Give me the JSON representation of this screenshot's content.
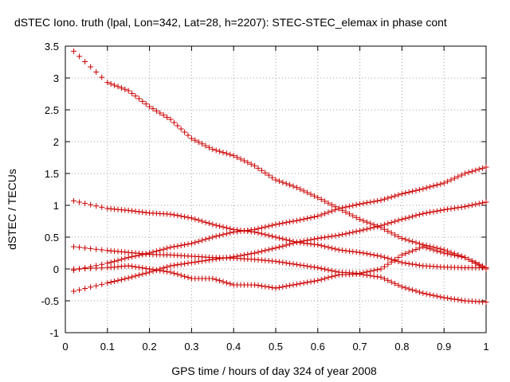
{
  "chart_data": {
    "type": "scatter",
    "title": "dSTEC Iono. truth (lpal, Lon=342, Lat=28, h=2207): STEC-STEC_elemax in phase cont",
    "xlabel": "GPS time / hours of day 324 of year 2008",
    "ylabel": "dSTEC  / TECUs",
    "xlim": [
      0,
      1
    ],
    "ylim": [
      -1,
      3.5
    ],
    "xticks": [
      0,
      0.1,
      0.2,
      0.3,
      0.4,
      0.5,
      0.6,
      0.7,
      0.8,
      0.9,
      1
    ],
    "yticks": [
      -1,
      -0.5,
      0,
      0.5,
      1,
      1.5,
      2,
      2.5,
      3,
      3.5
    ],
    "xtick_labels": [
      "0",
      "0.1",
      "0.2",
      "0.3",
      "0.4",
      "0.5",
      "0.6",
      "0.7",
      "0.8",
      "0.9",
      "1"
    ],
    "ytick_labels": [
      "-1",
      "-0.5",
      "0",
      "0.5",
      "1",
      "1.5",
      "2",
      "2.5",
      "3",
      "3.5"
    ],
    "grid": true,
    "marker": "+",
    "color": "#cc0000",
    "series": [
      {
        "x": [
          0.02,
          0.1,
          0.15,
          0.2,
          0.25,
          0.3,
          0.35,
          0.4,
          0.45,
          0.5,
          0.55,
          0.6,
          0.65,
          0.7,
          0.75,
          0.8,
          0.85,
          0.9,
          0.95,
          1.0
        ],
        "y": [
          3.42,
          2.93,
          2.8,
          2.55,
          2.35,
          2.05,
          1.88,
          1.78,
          1.62,
          1.4,
          1.28,
          1.12,
          0.95,
          0.78,
          0.65,
          0.48,
          0.38,
          0.3,
          0.18,
          0.02
        ]
      },
      {
        "x": [
          0.02,
          0.1,
          0.15,
          0.2,
          0.25,
          0.3,
          0.35,
          0.4,
          0.45,
          0.5,
          0.55,
          0.6,
          0.65,
          0.7,
          0.75,
          0.8,
          0.85,
          0.9,
          0.95,
          1.0
        ],
        "y": [
          1.07,
          0.95,
          0.92,
          0.88,
          0.86,
          0.8,
          0.7,
          0.62,
          0.58,
          0.5,
          0.42,
          0.38,
          0.3,
          0.26,
          0.2,
          0.1,
          0.05,
          0.03,
          0.02,
          0.02
        ]
      },
      {
        "x": [
          0.02,
          0.1,
          0.15,
          0.2,
          0.25,
          0.3,
          0.35,
          0.4,
          0.45,
          0.5,
          0.55,
          0.6,
          0.65,
          0.7,
          0.75,
          0.8,
          0.85,
          0.9,
          0.95,
          1.0
        ],
        "y": [
          0.35,
          0.29,
          0.26,
          0.23,
          0.22,
          0.2,
          0.18,
          0.17,
          0.15,
          0.12,
          0.07,
          0.02,
          -0.05,
          -0.07,
          0.0,
          0.22,
          0.35,
          0.25,
          0.18,
          0.0
        ]
      },
      {
        "x": [
          0.02,
          0.1,
          0.15,
          0.2,
          0.25,
          0.3,
          0.35,
          0.4,
          0.45,
          0.5,
          0.55,
          0.6,
          0.65,
          0.7,
          0.75,
          0.8,
          0.85,
          0.9,
          0.95,
          1.0
        ],
        "y": [
          -0.02,
          0.09,
          0.18,
          0.25,
          0.34,
          0.4,
          0.5,
          0.58,
          0.62,
          0.7,
          0.76,
          0.83,
          0.95,
          1.02,
          1.08,
          1.18,
          1.26,
          1.35,
          1.5,
          1.6
        ]
      },
      {
        "x": [
          0.02,
          0.1,
          0.15,
          0.2,
          0.25,
          0.3,
          0.35,
          0.4,
          0.45,
          0.5,
          0.55,
          0.6,
          0.65,
          0.7,
          0.75,
          0.8,
          0.85,
          0.9,
          0.95,
          1.0
        ],
        "y": [
          -0.35,
          -0.22,
          -0.14,
          -0.05,
          0.05,
          0.1,
          0.15,
          0.19,
          0.25,
          0.33,
          0.42,
          0.48,
          0.53,
          0.6,
          0.68,
          0.78,
          0.87,
          0.93,
          0.98,
          1.05
        ]
      },
      {
        "x": [
          0.02,
          0.1,
          0.15,
          0.2,
          0.25,
          0.3,
          0.35,
          0.4,
          0.45,
          0.5,
          0.55,
          0.6,
          0.65,
          0.7,
          0.75,
          0.8,
          0.85,
          0.9,
          0.95,
          1.0
        ],
        "y": [
          0.0,
          0.02,
          0.05,
          0.0,
          -0.05,
          -0.15,
          -0.15,
          -0.25,
          -0.25,
          -0.3,
          -0.24,
          -0.18,
          -0.09,
          -0.08,
          -0.13,
          -0.28,
          -0.38,
          -0.45,
          -0.5,
          -0.52
        ]
      }
    ]
  }
}
